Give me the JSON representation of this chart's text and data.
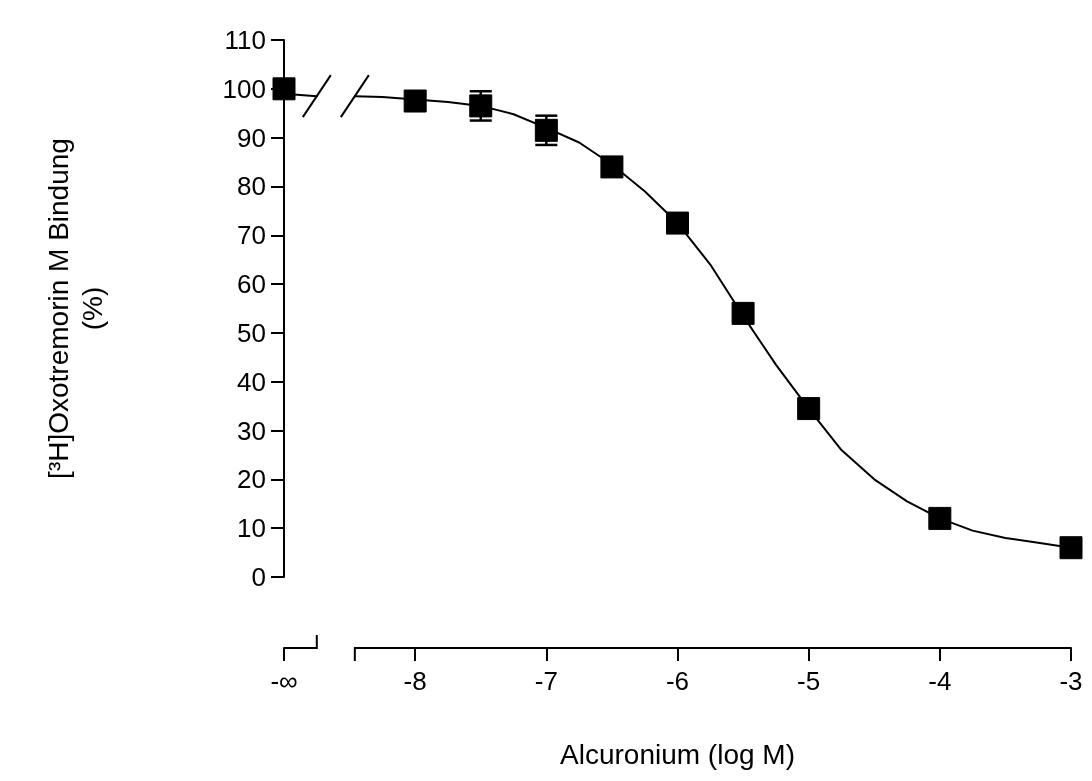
{
  "chart_data": {
    "type": "scatter",
    "xlabel": "Alcuronium (log M)",
    "ylabel": "[³H]Oxotremorin M Bindung (%)",
    "xlim": [
      -9,
      -3
    ],
    "ylim": [
      0,
      110
    ],
    "xticks": [
      {
        "value": -9,
        "label": "-∞"
      },
      -8,
      -7,
      -6,
      -5,
      -4,
      -3
    ],
    "yticks": [
      0,
      10,
      20,
      30,
      40,
      50,
      60,
      70,
      80,
      90,
      100,
      110
    ],
    "grid": false,
    "marker": "square",
    "series": [
      {
        "type": "scatter",
        "color": "#000000",
        "x": [
          -9,
          -8,
          -7.5,
          -7,
          -6.5,
          -6,
          -5.5,
          -5,
          -4,
          -3
        ],
        "values": [
          100,
          97.5,
          96.5,
          91.5,
          84,
          72.5,
          54,
          34.5,
          12,
          6
        ],
        "errors": [
          null,
          null,
          3,
          3,
          null,
          null,
          null,
          null,
          null,
          null
        ]
      },
      {
        "type": "line",
        "color": "#000000",
        "marker": "none",
        "line_style": "solid",
        "x": [
          -9,
          -8.75,
          -8.6,
          -8.46,
          -8.25,
          -8,
          -7.75,
          -7.5,
          -7.25,
          -7,
          -6.75,
          -6.5,
          -6.25,
          -6,
          -5.75,
          -5.5,
          -5.25,
          -5,
          -4.75,
          -4.5,
          -4.25,
          -4,
          -3.75,
          -3.5,
          -3.25,
          -3
        ],
        "values": [
          99,
          98.5,
          null,
          98.5,
          98.3,
          97.8,
          97.3,
          96.5,
          94.8,
          92,
          89,
          84.5,
          79,
          72.5,
          64,
          53.5,
          43.5,
          34.5,
          26,
          20,
          15.5,
          12,
          9.5,
          8,
          7,
          6
        ]
      }
    ]
  }
}
